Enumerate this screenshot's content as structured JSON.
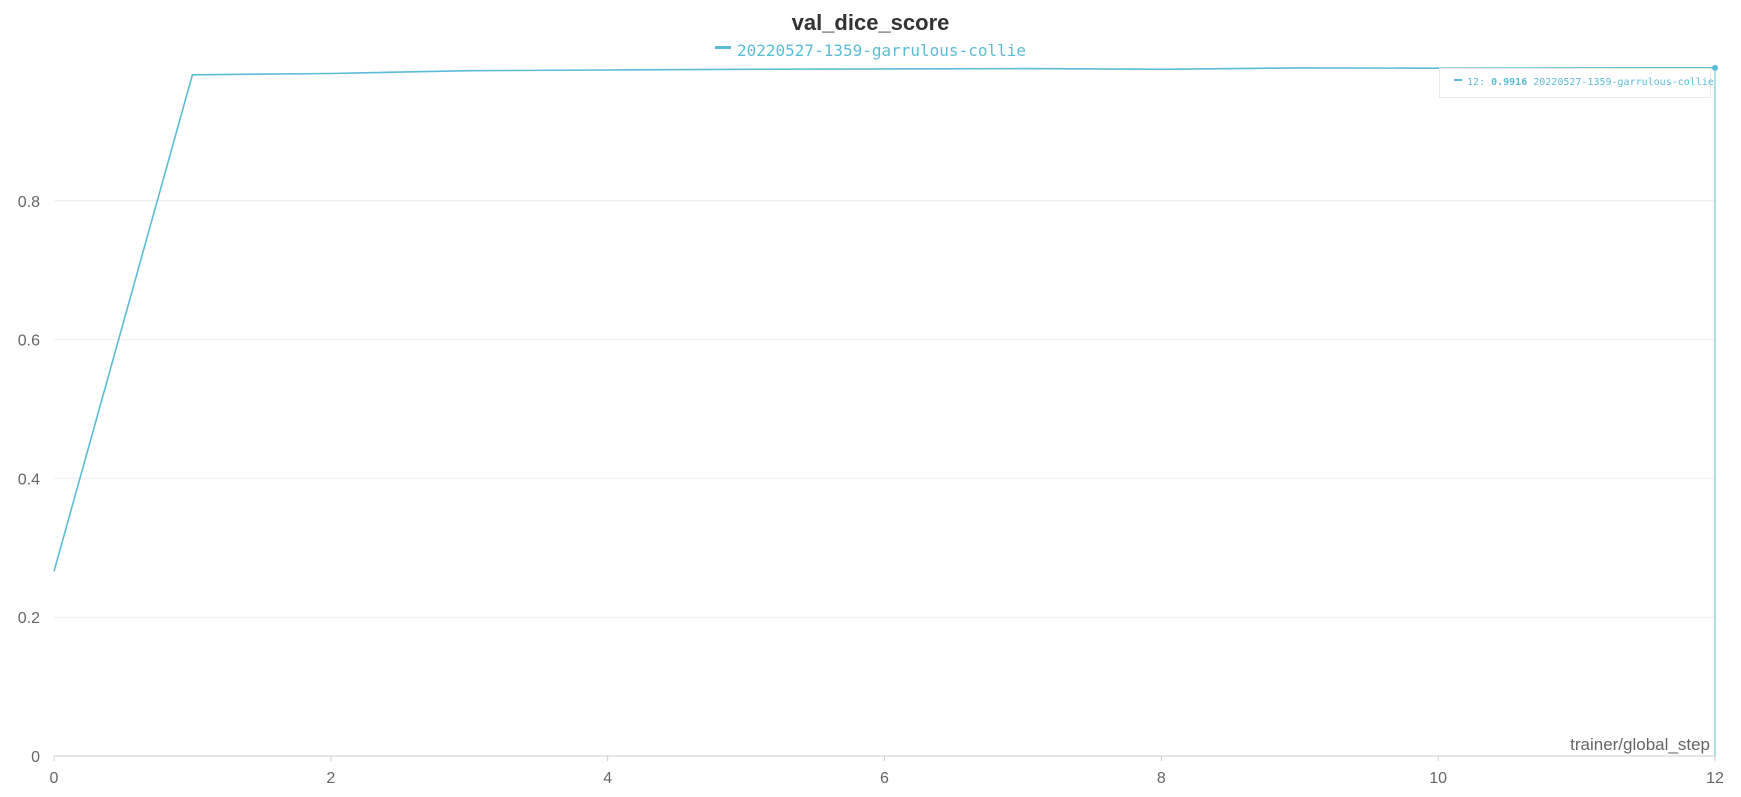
{
  "chart_data": {
    "type": "line",
    "title": "val_dice_score",
    "xlabel": "trainer/global_step",
    "ylabel": "",
    "xlim": [
      0,
      12
    ],
    "ylim": [
      0,
      1
    ],
    "x_ticks": [
      0,
      2,
      4,
      6,
      8,
      10,
      12
    ],
    "y_ticks": [
      0,
      0.2,
      0.4,
      0.6,
      0.8
    ],
    "y_tick_labels": [
      "0",
      "0.2",
      "0.4",
      "0.6",
      "0.8"
    ],
    "grid": true,
    "legend_position": "top-center",
    "series": [
      {
        "name": "20220527-1359-garrulous-collie",
        "color": "#5bbcd6",
        "x": [
          0,
          1,
          2,
          3,
          4,
          5,
          6,
          7,
          8,
          9,
          10,
          11,
          12
        ],
        "y": [
          0.266,
          0.9815,
          0.9835,
          0.9875,
          0.9885,
          0.9895,
          0.99,
          0.9905,
          0.9895,
          0.9915,
          0.991,
          0.9915,
          0.9916
        ]
      }
    ],
    "hover": {
      "x": 12,
      "value": "0.9916",
      "label_prefix": "12:",
      "series": "20220527-1359-garrulous-collie"
    }
  }
}
